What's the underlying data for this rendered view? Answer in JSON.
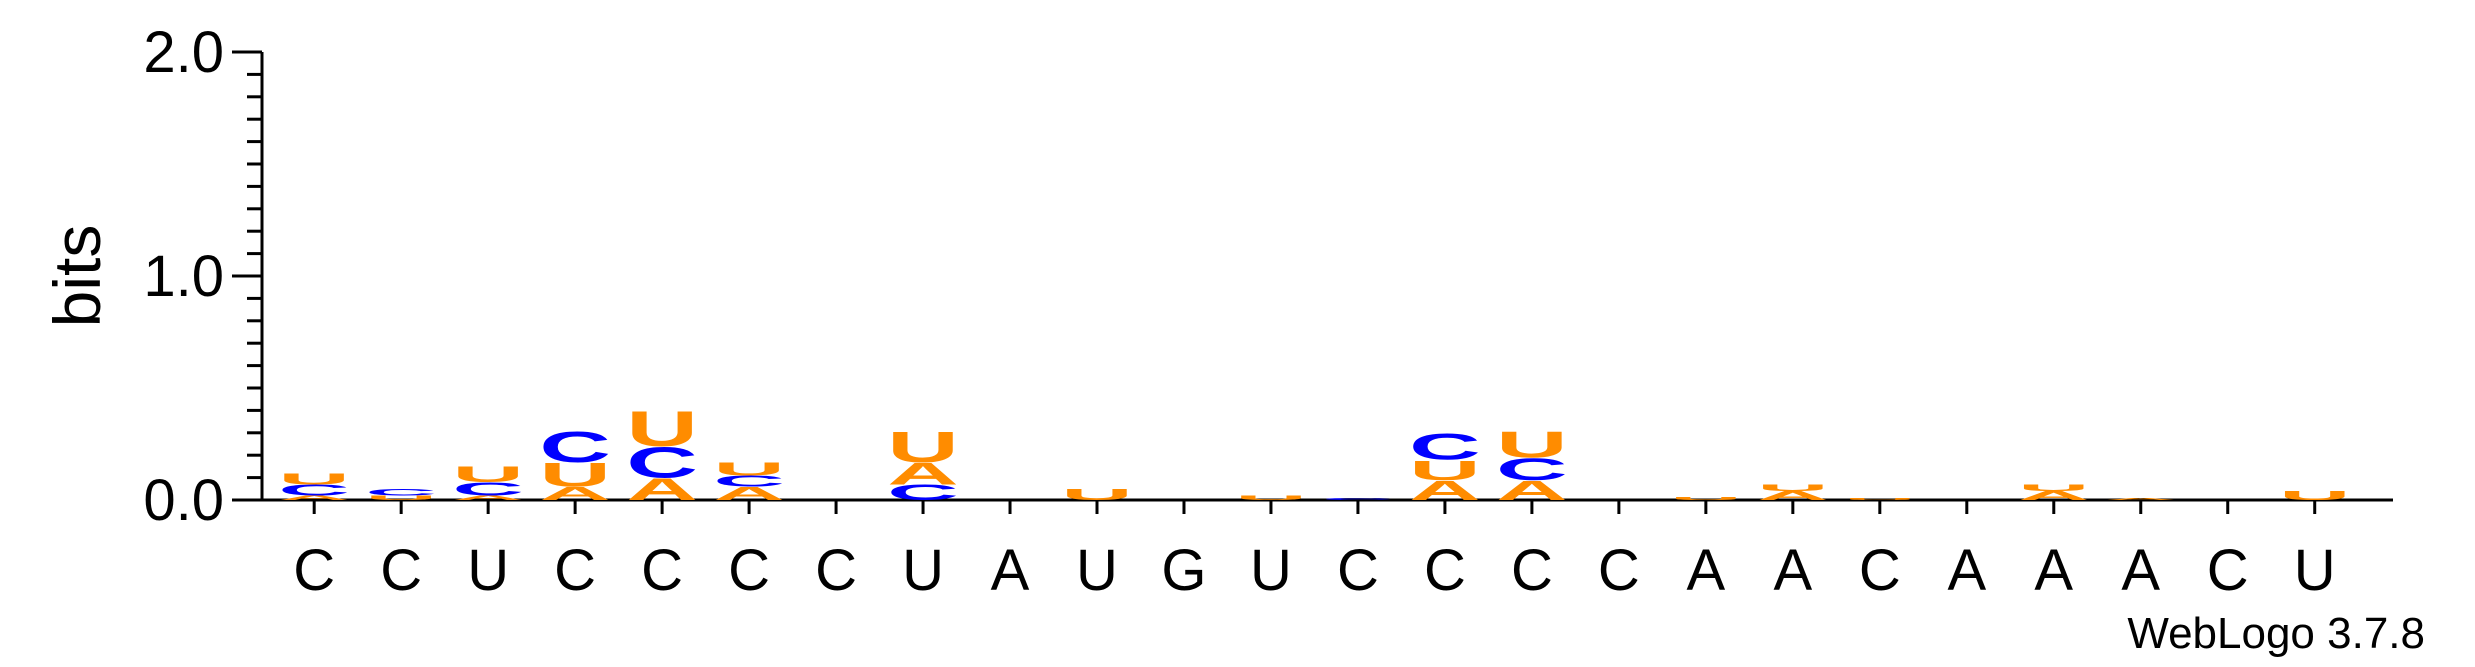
{
  "chart_data": {
    "type": "sequence-logo",
    "ylabel": "bits",
    "ylim": [
      0,
      2.0
    ],
    "y_ticks": [
      "0.0",
      "1.0",
      "2.0"
    ],
    "x_labels": [
      "C",
      "C",
      "U",
      "C",
      "C",
      "C",
      "C",
      "U",
      "A",
      "U",
      "G",
      "U",
      "C",
      "C",
      "C",
      "C",
      "A",
      "A",
      "C",
      "A",
      "A",
      "A",
      "C",
      "U"
    ],
    "credit": "WebLogo 3.7.8",
    "colors": {
      "A": "#ff8c00",
      "U": "#ff8c00",
      "C": "#0000ff",
      "G": "#0000ff"
    },
    "stacks": [
      [
        [
          "A",
          0.02
        ],
        [
          "C",
          0.05
        ],
        [
          "U",
          0.05
        ]
      ],
      [
        [
          "U",
          0.02
        ],
        [
          "C",
          0.03
        ]
      ],
      [
        [
          "A",
          0.02
        ],
        [
          "C",
          0.06
        ],
        [
          "U",
          0.07
        ]
      ],
      [
        [
          "A",
          0.06
        ],
        [
          "U",
          0.11
        ],
        [
          "C",
          0.14
        ]
      ],
      [
        [
          "A",
          0.1
        ],
        [
          "C",
          0.14
        ],
        [
          "U",
          0.16
        ]
      ],
      [
        [
          "A",
          0.06
        ],
        [
          "C",
          0.05
        ],
        [
          "U",
          0.06
        ]
      ],
      [],
      [
        [
          "C",
          0.07
        ],
        [
          "A",
          0.1
        ],
        [
          "U",
          0.14
        ]
      ],
      [],
      [
        [
          "U",
          0.05
        ]
      ],
      [],
      [
        [
          "U",
          0.02
        ]
      ],
      [
        [
          "C",
          0.01
        ]
      ],
      [
        [
          "A",
          0.09
        ],
        [
          "U",
          0.09
        ],
        [
          "C",
          0.12
        ]
      ],
      [
        [
          "A",
          0.09
        ],
        [
          "C",
          0.1
        ],
        [
          "U",
          0.12
        ]
      ],
      [],
      [
        [
          "U",
          0.015
        ]
      ],
      [
        [
          "A",
          0.04
        ],
        [
          "U",
          0.03
        ]
      ],
      [
        [
          "U",
          0.01
        ]
      ],
      [],
      [
        [
          "A",
          0.04
        ],
        [
          "U",
          0.03
        ]
      ],
      [
        [
          "A",
          0.01
        ]
      ],
      [],
      [
        [
          "U",
          0.04
        ]
      ]
    ]
  }
}
